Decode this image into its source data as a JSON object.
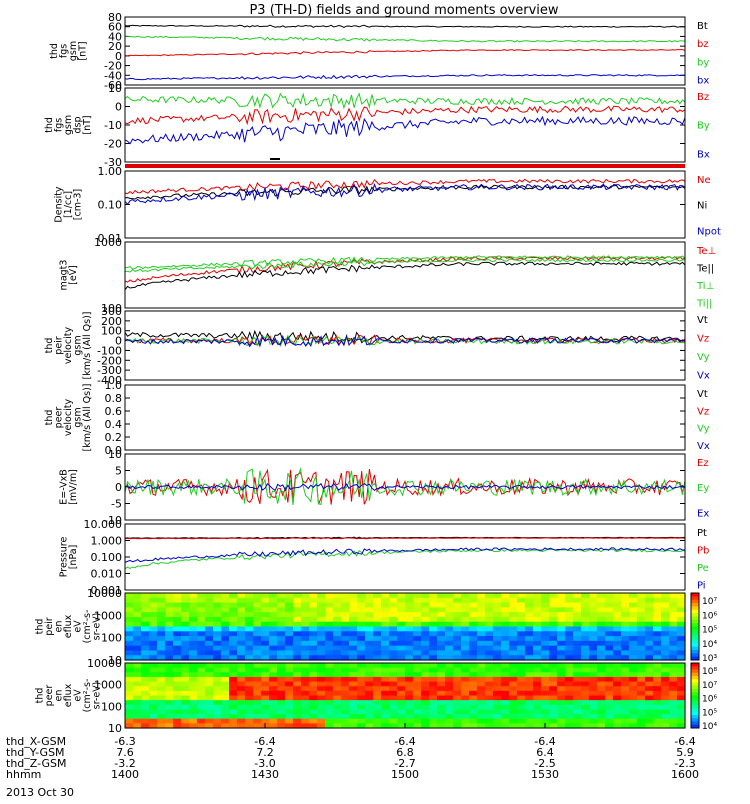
{
  "title": "P3 (TH-D) fields and ground moments overview",
  "colors": {
    "black": "#000000",
    "red": "#e00000",
    "green": "#22cc22",
    "blue": "#0000cc"
  },
  "chart_data": {
    "type": "line",
    "x_ticks": [
      "1400",
      "1430",
      "1500",
      "1530",
      "1600"
    ],
    "xlim": [
      "1400",
      "1600"
    ],
    "ephemeris": [
      {
        "label": "thd_X-GSM",
        "values": [
          "-6.3",
          "-6.4",
          "-6.4",
          "-6.4",
          "-6.4"
        ]
      },
      {
        "label": "thd_Y-GSM",
        "values": [
          "7.6",
          "7.2",
          "6.8",
          "6.4",
          "5.9"
        ]
      },
      {
        "label": "thd_Z-GSM",
        "values": [
          "-3.2",
          "-3.0",
          "-2.7",
          "-2.5",
          "-2.3"
        ]
      },
      {
        "label": "hhmm",
        "values": [
          "1400",
          "1430",
          "1500",
          "1530",
          "1600"
        ]
      }
    ],
    "date": "2013 Oct 30",
    "panels": [
      {
        "id": "p1",
        "type": "line",
        "ylabel": [
          "thd",
          "fgs",
          "gsm",
          "[nT]"
        ],
        "ylim": [
          -60,
          80
        ],
        "yticks": [
          "80",
          "60",
          "40",
          "20",
          "0",
          "-20",
          "-40",
          "-60"
        ],
        "series": [
          {
            "name": "Bt",
            "color": "#000000",
            "start": 62,
            "end": 60,
            "noise": 1
          },
          {
            "name": "bz",
            "color": "#e00000",
            "start": 0,
            "end": 12,
            "noise": 1
          },
          {
            "name": "by",
            "color": "#22cc22",
            "start": 40,
            "end": 30,
            "noise": 1.5
          },
          {
            "name": "bx",
            "color": "#0000cc",
            "start": -48,
            "end": -40,
            "noise": 1.5
          }
        ]
      },
      {
        "id": "p2",
        "type": "line",
        "ylabel": [
          "thd",
          "fgs",
          "gsm",
          "dsp",
          "[nT]"
        ],
        "ylim": [
          -35,
          10
        ],
        "yticks": [
          "10",
          "0",
          "-10",
          "-20",
          "-30"
        ],
        "series": [
          {
            "name": "Bz",
            "color": "#e00000",
            "start": -10,
            "end": -3,
            "noise": 2
          },
          {
            "name": "By",
            "color": "#22cc22",
            "start": 3,
            "end": 2,
            "noise": 2
          },
          {
            "name": "Bx",
            "color": "#0000cc",
            "start": -22,
            "end": -10,
            "noise": 2.5
          }
        ]
      },
      {
        "id": "p3",
        "type": "line",
        "ylabel": [
          "Density",
          "[1/cc]",
          "[cm-3]"
        ],
        "ylim": [
          0.01,
          1.5
        ],
        "log": true,
        "yticks": [
          "1.00",
          "0.10",
          "0.01"
        ],
        "series": [
          {
            "name": "Ne",
            "color": "#e00000",
            "start": 0.3,
            "end": 0.7,
            "noise": 0.12
          },
          {
            "name": "Ni",
            "color": "#000000",
            "start": 0.2,
            "end": 0.45,
            "noise": 0.12
          },
          {
            "name": "Npot",
            "color": "#0000cc",
            "start": 0.15,
            "end": 0.45,
            "noise": 0.18
          }
        ]
      },
      {
        "id": "p4",
        "type": "line",
        "ylabel": [
          "magt3",
          "[eV]"
        ],
        "ylim": [
          100,
          10000
        ],
        "log": true,
        "yticks": [
          "1000",
          "100"
        ],
        "series": [
          {
            "name": "Te⊥",
            "color": "#e00000",
            "start": 600,
            "end": 3200,
            "noise": 0.1
          },
          {
            "name": "Te||",
            "color": "#000000",
            "start": 400,
            "end": 2200,
            "noise": 0.1
          },
          {
            "name": "Ti⊥",
            "color": "#22cc22",
            "start": 1600,
            "end": 3500,
            "noise": 0.08
          },
          {
            "name": "Ti||",
            "color": "#22cc22",
            "start": 1300,
            "end": 2800,
            "noise": 0.08
          }
        ]
      },
      {
        "id": "p5",
        "type": "line",
        "ylabel": [
          "thd",
          "peir",
          "velocity",
          "gsm",
          "[km/s (All Qs)]"
        ],
        "ylim": [
          -400,
          300
        ],
        "yticks": [
          "300",
          "200",
          "100",
          "0",
          "-100",
          "-200",
          "-300",
          "-400"
        ],
        "series": [
          {
            "name": "Vt",
            "color": "#000000",
            "start": 60,
            "end": 20,
            "noise": 25
          },
          {
            "name": "Vz",
            "color": "#e00000",
            "start": 0,
            "end": 0,
            "noise": 25
          },
          {
            "name": "Vy",
            "color": "#22cc22",
            "start": 0,
            "end": -10,
            "noise": 25
          },
          {
            "name": "Vx",
            "color": "#0000cc",
            "start": -10,
            "end": 0,
            "noise": 25
          }
        ]
      },
      {
        "id": "p6",
        "type": "line",
        "ylabel": [
          "thd",
          "peer",
          "velocity",
          "gsm",
          "[km/s (All Qs)]"
        ],
        "ylim": [
          0,
          1
        ],
        "yticks": [
          "1.0",
          "0.8",
          "0.6",
          "0.4",
          "0.2",
          "0.0"
        ],
        "series": [
          {
            "name": "Vt",
            "color": "#000000",
            "start": null,
            "end": null,
            "noise": 0
          },
          {
            "name": "Vz",
            "color": "#e00000",
            "start": null,
            "end": null,
            "noise": 0
          },
          {
            "name": "Vy",
            "color": "#22cc22",
            "start": null,
            "end": null,
            "noise": 0
          },
          {
            "name": "Vx",
            "color": "#0000cc",
            "start": null,
            "end": null,
            "noise": 0
          }
        ]
      },
      {
        "id": "p7",
        "type": "line",
        "ylabel": [
          "E=-VxB",
          "[mV/m]"
        ],
        "ylim": [
          -10,
          10
        ],
        "yticks": [
          "10",
          "5",
          "0",
          "-5",
          "-10"
        ],
        "series": [
          {
            "name": "Ez",
            "color": "#e00000",
            "start": 0,
            "end": 0,
            "noise": 2.5
          },
          {
            "name": "Ey",
            "color": "#22cc22",
            "start": 0,
            "end": 0,
            "noise": 2.5
          },
          {
            "name": "Ex",
            "color": "#0000cc",
            "start": 0,
            "end": 0,
            "noise": 0.5
          }
        ]
      },
      {
        "id": "p8",
        "type": "line",
        "ylabel": [
          "Pressure",
          "[nPa]"
        ],
        "ylim": [
          0.001,
          10
        ],
        "log": true,
        "yticks": [
          "10.000",
          "1.000",
          "0.100",
          "0.010",
          "0.001"
        ],
        "series": [
          {
            "name": "Pt",
            "color": "#000000",
            "start": 1.4,
            "end": 1.5,
            "noise": 0.03
          },
          {
            "name": "Pb",
            "color": "#e00000",
            "start": 1.3,
            "end": 1.4,
            "noise": 0.03
          },
          {
            "name": "Pe",
            "color": "#22cc22",
            "start": 0.02,
            "end": 0.25,
            "noise": 0.15
          },
          {
            "name": "Pi",
            "color": "#0000cc",
            "start": 0.05,
            "end": 0.3,
            "noise": 0.15
          }
        ]
      },
      {
        "id": "p9",
        "type": "heatmap",
        "ylabel": [
          "thd",
          "peir",
          "en",
          "eflux",
          "eV",
          "(cm²-s-",
          "sr-eV)"
        ],
        "yticks": [
          "10000",
          "1000",
          "100",
          "10"
        ],
        "colorbar": [
          "10⁷",
          "10⁶",
          "10⁵",
          "10⁴",
          "10³"
        ]
      },
      {
        "id": "p10",
        "type": "heatmap",
        "ylabel": [
          "thd",
          "peer",
          "en",
          "eflux",
          "eV",
          "(cm²-s-",
          "sr-eV)"
        ],
        "yticks": [
          "10000",
          "1000",
          "100",
          "10"
        ],
        "colorbar": [
          "10⁸",
          "10⁷",
          "10⁶",
          "10⁵",
          "10⁴"
        ]
      }
    ]
  }
}
